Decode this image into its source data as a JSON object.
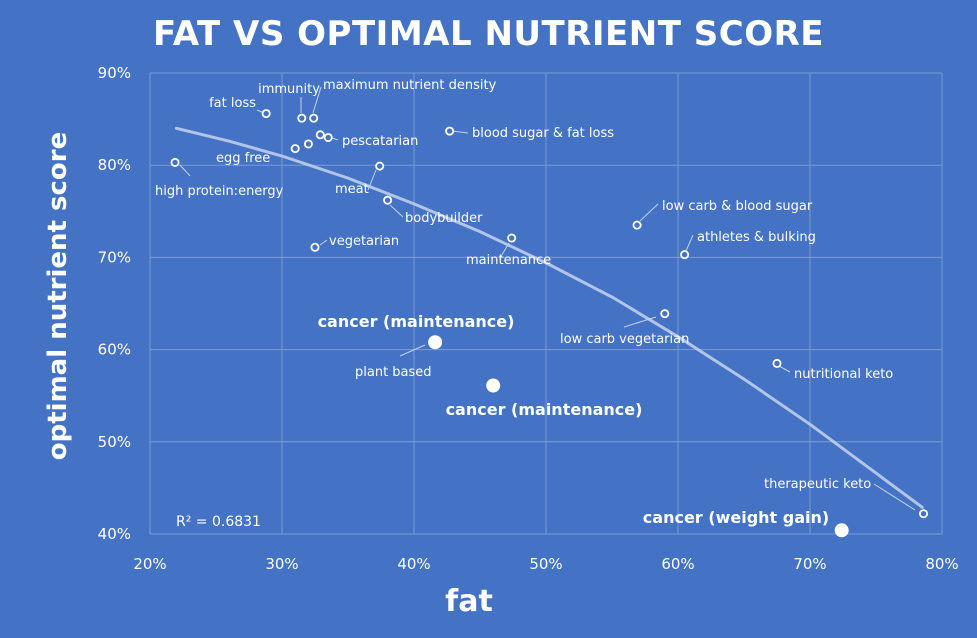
{
  "chart_data": {
    "type": "scatter",
    "title": "FAT VS OPTIMAL NUTRIENT SCORE",
    "xlabel": "fat",
    "ylabel": "optimal nutrient  score",
    "xlim": [
      0.2,
      0.8
    ],
    "ylim": [
      0.4,
      0.9
    ],
    "x_ticks": [
      0.2,
      0.3,
      0.4,
      0.5,
      0.6,
      0.7,
      0.8
    ],
    "y_ticks": [
      0.4,
      0.5,
      0.6,
      0.7,
      0.8,
      0.9
    ],
    "x_tick_labels": [
      "20%",
      "30%",
      "40%",
      "50%",
      "60%",
      "70%",
      "80%"
    ],
    "y_tick_labels": [
      "40%",
      "50%",
      "60%",
      "70%",
      "80%",
      "90%"
    ],
    "grid": true,
    "colors": {
      "background": "#4472c4",
      "grid": "#7b9ad6",
      "marker": "#ffffff",
      "trend": "#c5d3ee"
    },
    "points": [
      {
        "label": "fat loss",
        "x": 0.288,
        "y": 0.856
      },
      {
        "label": "immunity",
        "x": 0.315,
        "y": 0.851
      },
      {
        "label": "maximum nutrient density",
        "x": 0.324,
        "y": 0.851
      },
      {
        "label": "",
        "x": 0.31,
        "y": 0.818
      },
      {
        "label": "",
        "x": 0.32,
        "y": 0.823
      },
      {
        "label": "",
        "x": 0.329,
        "y": 0.833
      },
      {
        "label": "pescatarian",
        "x": 0.335,
        "y": 0.83
      },
      {
        "label": "egg free",
        "x": 0.219,
        "y": 0.803
      },
      {
        "label": "high protein:energy",
        "x": 0.219,
        "y": 0.803
      },
      {
        "label": "meat",
        "x": 0.374,
        "y": 0.799
      },
      {
        "label": "bodybuilder",
        "x": 0.38,
        "y": 0.762
      },
      {
        "label": "blood sugar & fat loss",
        "x": 0.427,
        "y": 0.837
      },
      {
        "label": "vegetarian",
        "x": 0.325,
        "y": 0.711
      },
      {
        "label": "maintenance",
        "x": 0.474,
        "y": 0.721
      },
      {
        "label": "low carb & blood sugar",
        "x": 0.569,
        "y": 0.735
      },
      {
        "label": "athletes & bulking",
        "x": 0.605,
        "y": 0.703
      },
      {
        "label": "low carb vegetarian",
        "x": 0.59,
        "y": 0.639
      },
      {
        "label": "nutritional keto",
        "x": 0.675,
        "y": 0.585
      },
      {
        "label": "therapeutic keto",
        "x": 0.786,
        "y": 0.422
      }
    ],
    "highlight_points": [
      {
        "label": "cancer (maintenance)",
        "extra_label": "plant based",
        "x": 0.416,
        "y": 0.608
      },
      {
        "label": "cancer (maintenance)",
        "x": 0.46,
        "y": 0.561
      },
      {
        "label": "cancer (weight gain)",
        "x": 0.724,
        "y": 0.404
      }
    ],
    "trendline": {
      "type": "polynomial",
      "x": [
        0.22,
        0.26,
        0.3,
        0.35,
        0.4,
        0.45,
        0.5,
        0.55,
        0.6,
        0.65,
        0.7,
        0.75,
        0.785
      ],
      "y": [
        0.84,
        0.826,
        0.81,
        0.786,
        0.758,
        0.728,
        0.694,
        0.657,
        0.614,
        0.568,
        0.519,
        0.466,
        0.429
      ]
    },
    "r_squared_label": "R² = 0.6831"
  }
}
